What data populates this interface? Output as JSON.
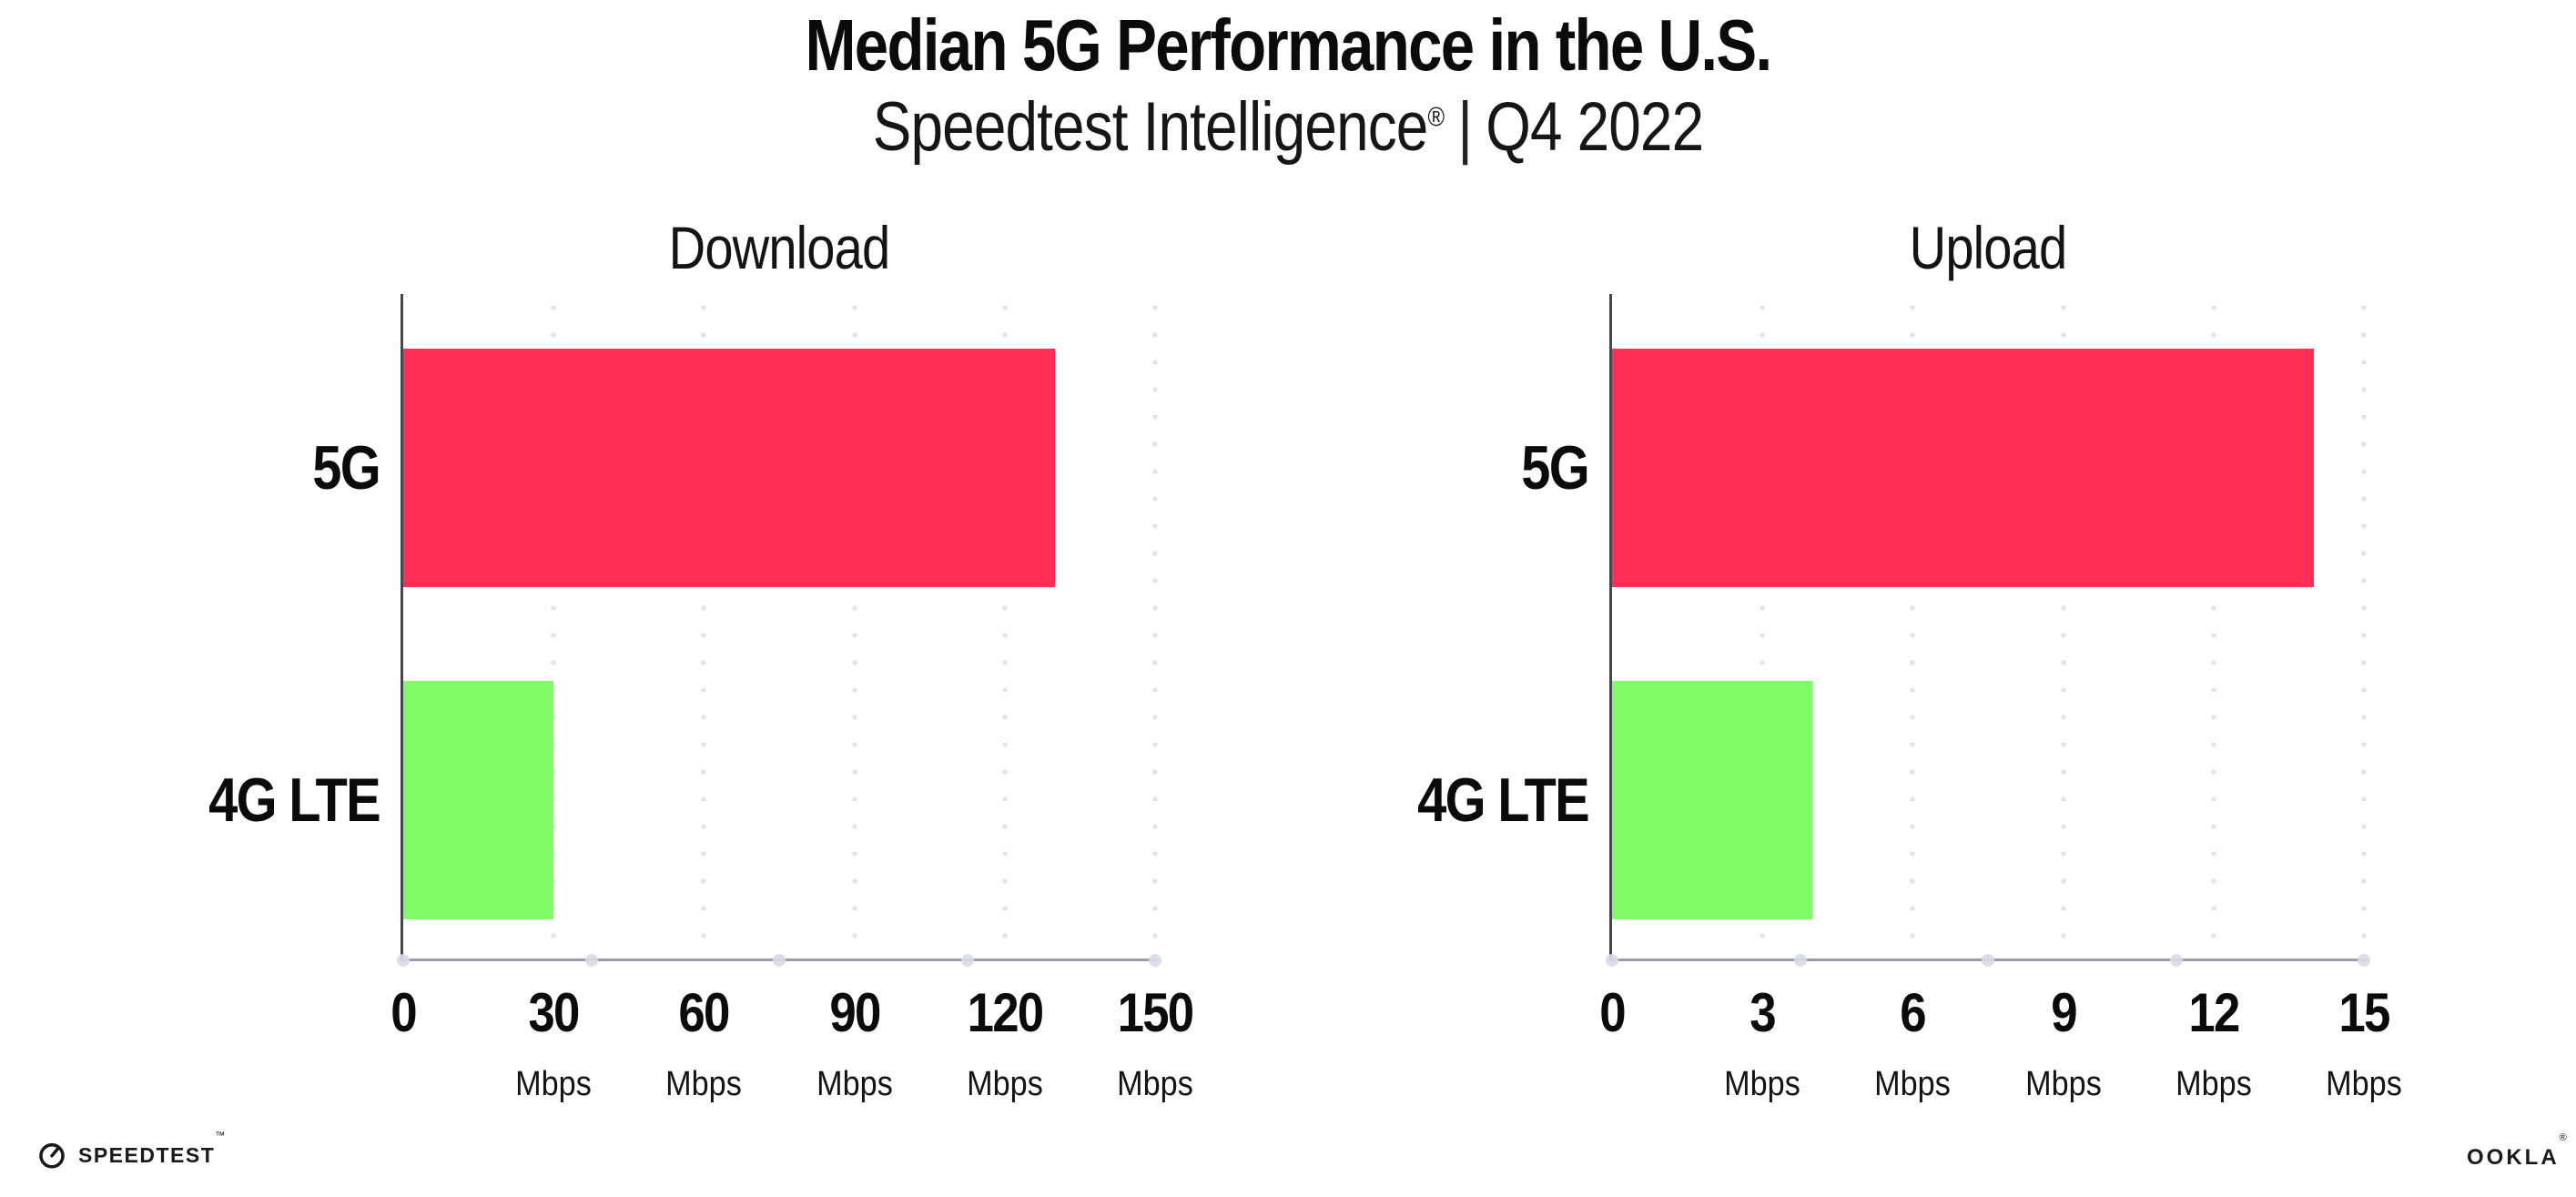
{
  "header": {
    "title": "Median 5G Performance in the U.S.",
    "subtitle": {
      "brand": "Speedtest Intelligence",
      "registered_mark": "®",
      "separator": "|",
      "period": "Q4 2022"
    }
  },
  "chart_data": [
    {
      "type": "bar",
      "orientation": "horizontal",
      "title": "Download",
      "categories": [
        "5G",
        "4G LTE"
      ],
      "values": [
        130,
        30
      ],
      "value_unit": "Mbps",
      "bar_colors": [
        "#FF2E56",
        "#80FC66"
      ],
      "xlim": [
        0,
        150
      ],
      "xticks": [
        0,
        30,
        60,
        90,
        120,
        150
      ],
      "xtick_unit_label": "Mbps",
      "grid": "dotted vertical gridlines at each tick",
      "legend": "none"
    },
    {
      "type": "bar",
      "orientation": "horizontal",
      "title": "Upload",
      "categories": [
        "5G",
        "4G LTE"
      ],
      "values": [
        14,
        4
      ],
      "value_unit": "Mbps",
      "bar_colors": [
        "#FF2E56",
        "#80FC66"
      ],
      "xlim": [
        0,
        15
      ],
      "xticks": [
        0,
        3,
        6,
        9,
        12,
        15
      ],
      "xtick_unit_label": "Mbps",
      "grid": "dotted vertical gridlines at each tick",
      "legend": "none"
    }
  ],
  "footer": {
    "speedtest_wordmark": "SPEEDTEST",
    "speedtest_trademark": "™",
    "ookla_wordmark": "OOKLA",
    "ookla_trademark": "®"
  },
  "colors": {
    "bar_5g": "#FF2E56",
    "bar_4g_lte": "#80FC66",
    "x_axis_line": "#9c9ca4",
    "y_axis_line": "#46464d",
    "gridline_dots": "#e2e3ec",
    "text": "#0b0b0c"
  }
}
